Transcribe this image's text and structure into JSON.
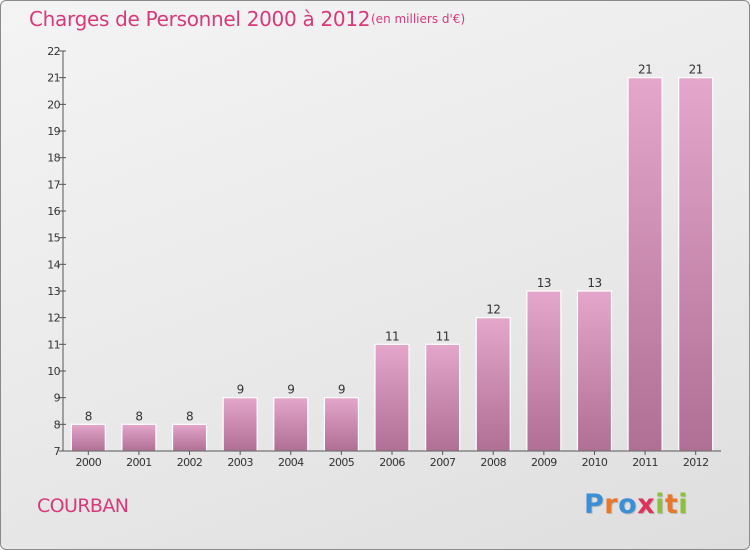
{
  "title": "Charges de Personnel 2000 à 2012",
  "subtitle": "(en milliers d'€)",
  "place": "COURBAN",
  "logo": {
    "letters": [
      "P",
      "r",
      "o",
      "x",
      "i",
      "t",
      "i"
    ],
    "colors": [
      "#3b8fd6",
      "#e8772c",
      "#3b8fd6",
      "#e0315a",
      "#8cbf3a",
      "#e8772c",
      "#8cbf3a"
    ]
  },
  "colors": {
    "bar_top": "#e4a6cb",
    "bar_bottom": "#b06f95",
    "accent": "#d63a7a"
  },
  "chart_data": {
    "type": "bar",
    "categories": [
      "2000",
      "2001",
      "2002",
      "2003",
      "2004",
      "2005",
      "2006",
      "2007",
      "2008",
      "2009",
      "2010",
      "2011",
      "2012"
    ],
    "values": [
      8,
      8,
      8,
      9,
      9,
      9,
      11,
      11,
      12,
      13,
      13,
      21,
      21
    ],
    "ylim": [
      7,
      22
    ],
    "yticks": [
      7,
      8,
      9,
      10,
      11,
      12,
      13,
      14,
      15,
      16,
      17,
      18,
      19,
      20,
      21,
      22
    ],
    "grid": false,
    "xlabel": "",
    "ylabel": ""
  }
}
